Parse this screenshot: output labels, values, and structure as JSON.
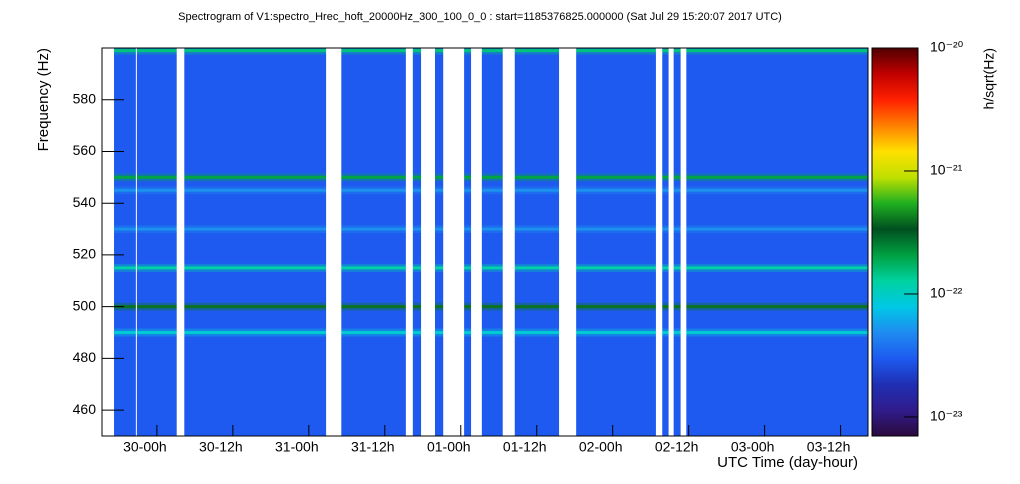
{
  "chart_data": {
    "type": "spectrogram",
    "title": "Spectrogram of V1:spectro_Hrec_hoft_20000Hz_300_100_0_0 : start=1185376825.000000 (Sat Jul 29 15:20:07 2017 UTC)",
    "x_label": "UTC Time (day-hour)",
    "y_label": "Frequency (Hz)",
    "z_label": "h/sqrt(Hz)",
    "xlim": [
      0,
      121
    ],
    "xticks": [
      {
        "value": 8.67,
        "label": "30-00h"
      },
      {
        "value": 20.67,
        "label": "30-12h"
      },
      {
        "value": 32.67,
        "label": "31-00h"
      },
      {
        "value": 44.67,
        "label": "31-12h"
      },
      {
        "value": 56.67,
        "label": "01-00h"
      },
      {
        "value": 68.67,
        "label": "01-12h"
      },
      {
        "value": 80.67,
        "label": "02-00h"
      },
      {
        "value": 92.67,
        "label": "02-12h"
      },
      {
        "value": 104.67,
        "label": "03-00h"
      },
      {
        "value": 116.67,
        "label": "03-12h"
      }
    ],
    "ylim": [
      450,
      600
    ],
    "yticks": [
      460,
      480,
      500,
      520,
      540,
      560,
      580
    ],
    "zlim": [
      7e-24,
      1e-20
    ],
    "zscale": "log",
    "zticks": [
      {
        "value": 1e-20,
        "label": "10⁻²⁰"
      },
      {
        "value": 1e-21,
        "label": "10⁻²¹"
      },
      {
        "value": 1e-22,
        "label": "10⁻²²"
      },
      {
        "value": 1e-23,
        "label": "10⁻²³"
      }
    ],
    "colormap": [
      "#2b0a3d",
      "#301c8c",
      "#1f2fb4",
      "#1e5af0",
      "#1e8cf0",
      "#00c8e6",
      "#00d2a0",
      "#00a040",
      "#005020",
      "#20b020",
      "#c0e000",
      "#ffe000",
      "#ff8000",
      "#ff2000",
      "#c00000",
      "#500000"
    ],
    "background_amplitude": 3e-23,
    "lines": [
      {
        "frequency": 500,
        "amplitude": 4e-22
      },
      {
        "frequency": 550,
        "amplitude": 2e-22
      },
      {
        "frequency": 515,
        "amplitude": 1.2e-22
      },
      {
        "frequency": 490,
        "amplitude": 9e-23
      },
      {
        "frequency": 599,
        "amplitude": 1.5e-22
      },
      {
        "frequency": 530,
        "amplitude": 5e-23
      },
      {
        "frequency": 545,
        "amplitude": 5e-23
      }
    ],
    "gaps": [
      [
        0,
        1.9
      ],
      [
        5.35,
        5.5
      ],
      [
        11.8,
        13.0
      ],
      [
        35.4,
        37.8
      ],
      [
        48.0,
        49.1
      ],
      [
        50.4,
        52.6
      ],
      [
        53.9,
        57.2
      ],
      [
        58.3,
        60.0
      ],
      [
        63.3,
        65.2
      ],
      [
        72.2,
        74.9
      ],
      [
        87.5,
        88.5
      ],
      [
        89.5,
        90.3
      ],
      [
        91.4,
        92.3
      ]
    ]
  }
}
